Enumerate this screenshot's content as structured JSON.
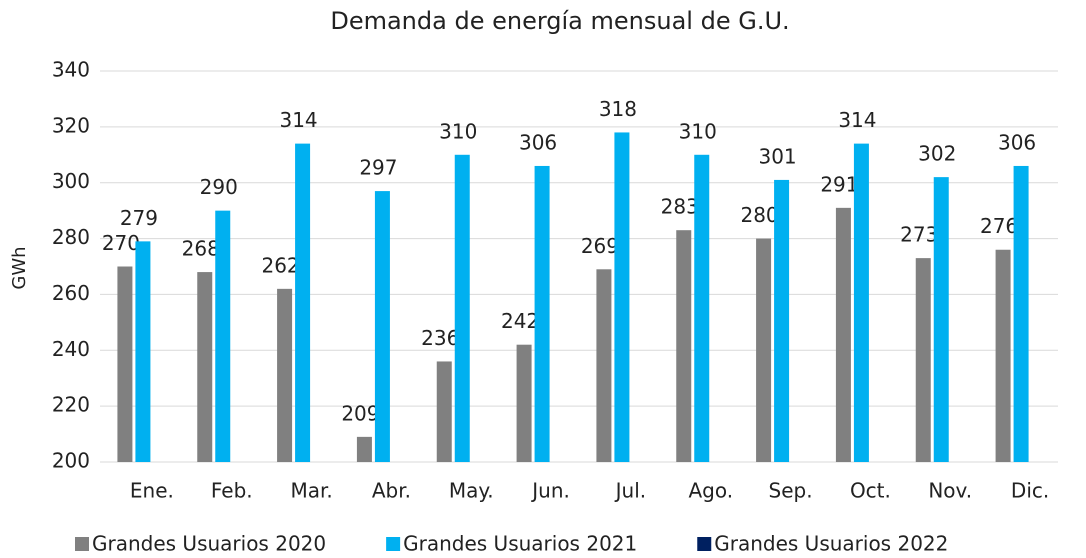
{
  "chart_data": {
    "type": "bar",
    "title": "Demanda de energía mensual de G.U.",
    "y_label": "GWh",
    "categories": [
      "Ene.",
      "Feb.",
      "Mar.",
      "Abr.",
      "May.",
      "Jun.",
      "Jul.",
      "Ago.",
      "Sep.",
      "Oct.",
      "Nov.",
      "Dic."
    ],
    "series": [
      {
        "name": "Grandes Usuarios 2020",
        "color": "#808080",
        "values": [
          270,
          268,
          262,
          209,
          236,
          242,
          269,
          283,
          280,
          291,
          273,
          276
        ]
      },
      {
        "name": "Grandes Usuarios 2021",
        "color": "#00b0f0",
        "values": [
          279,
          290,
          314,
          297,
          310,
          306,
          318,
          310,
          301,
          314,
          302,
          306
        ]
      },
      {
        "name": "Grandes Usuarios 2022",
        "color": "#002060",
        "values": [
          null,
          null,
          null,
          null,
          null,
          null,
          null,
          null,
          null,
          null,
          null,
          null
        ]
      }
    ],
    "ylim": [
      200,
      340
    ],
    "yticks": [
      200,
      220,
      240,
      260,
      280,
      300,
      320,
      340
    ],
    "grid": true,
    "legend": "bottom"
  }
}
